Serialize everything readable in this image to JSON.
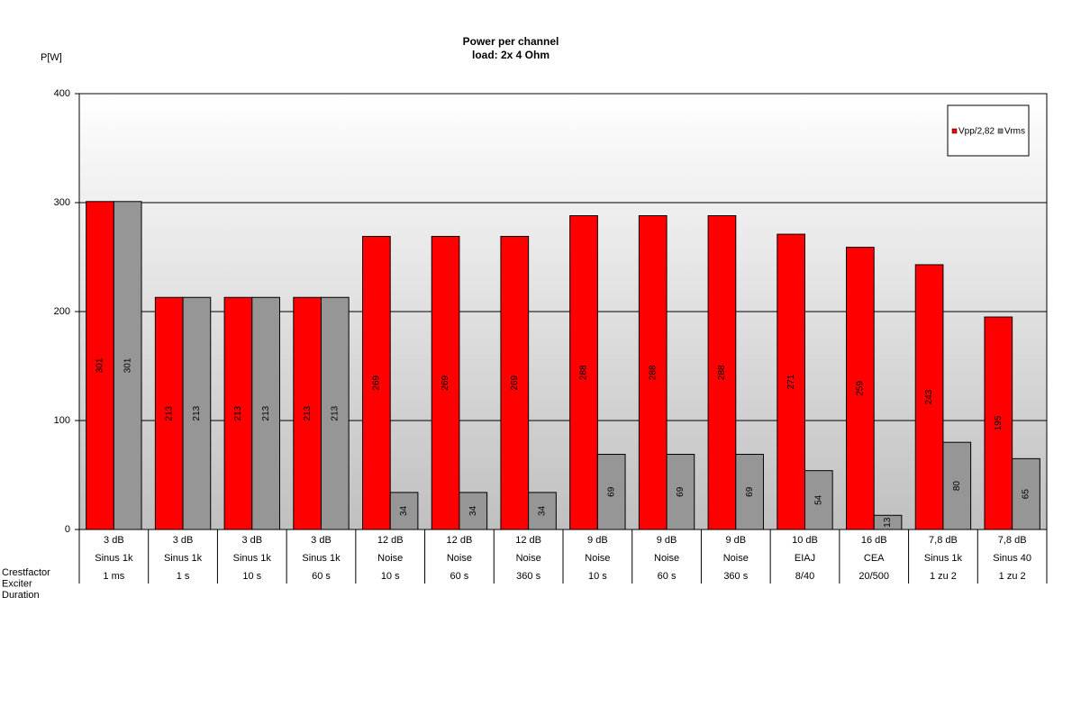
{
  "chart_data": {
    "type": "bar",
    "title": "Power per channel",
    "subtitle": "load:  2x 4 Ohm",
    "y_label": "P[W]",
    "category_rows": [
      {
        "name": "Crestfactor",
        "labels": [
          "3 dB",
          "3 dB",
          "3 dB",
          "3 dB",
          "12 dB",
          "12 dB",
          "12 dB",
          "9 dB",
          "9 dB",
          "9 dB",
          "10 dB",
          "16 dB",
          "7,8 dB",
          "7,8 dB"
        ]
      },
      {
        "name": "Exciter",
        "labels": [
          "Sinus 1k",
          "Sinus 1k",
          "Sinus 1k",
          "Sinus 1k",
          "Noise",
          "Noise",
          "Noise",
          "Noise",
          "Noise",
          "Noise",
          "EIAJ",
          "CEA",
          "Sinus 1k",
          "Sinus 40"
        ]
      },
      {
        "name": "Duration",
        "labels": [
          "1 ms",
          "1 s",
          "10 s",
          "60 s",
          "10 s",
          "60 s",
          "360 s",
          "10 s",
          "60 s",
          "360 s",
          "8/40",
          "20/500",
          "1 zu 2",
          "1 zu 2"
        ]
      }
    ],
    "series": [
      {
        "name": "Vpp/2,82",
        "color": "#ff0000",
        "values": [
          301,
          213,
          213,
          213,
          269,
          269,
          269,
          288,
          288,
          288,
          271,
          259,
          243,
          195
        ]
      },
      {
        "name": "Vrms",
        "color": "#969696",
        "values": [
          301,
          213,
          213,
          213,
          34,
          34,
          34,
          69,
          69,
          69,
          54,
          13,
          80,
          65
        ]
      }
    ],
    "ylim": [
      0,
      400
    ],
    "yticks": [
      0,
      100,
      200,
      300,
      400
    ],
    "grid": true,
    "legend": "top-right"
  }
}
